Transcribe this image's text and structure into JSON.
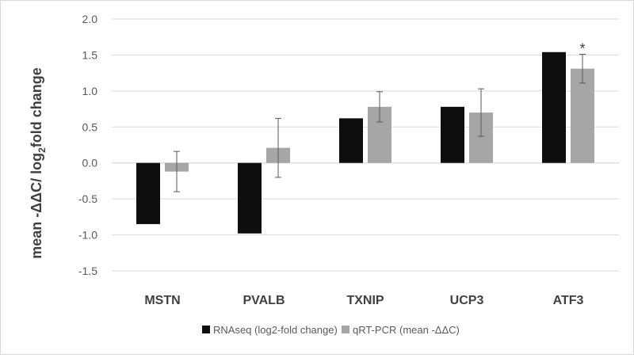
{
  "chart_data": {
    "type": "bar",
    "categories": [
      "MSTN",
      "PVALB",
      "TXNIP",
      "UCP3",
      "ATF3"
    ],
    "series": [
      {
        "name": "RNAseq (log2-fold change)",
        "values": [
          -0.85,
          -0.98,
          0.62,
          0.78,
          1.54
        ],
        "color": "#0d0d0d"
      },
      {
        "name": "qRT-PCR (mean -ΔΔC)",
        "values": [
          -0.12,
          0.21,
          0.78,
          0.7,
          1.31
        ],
        "error": [
          0.28,
          0.41,
          0.21,
          0.33,
          0.2
        ],
        "color": "#a6a6a6"
      }
    ],
    "ylabel_main": "mean -ΔΔC/ log",
    "ylabel_sub": "2",
    "ylabel_end": "fold change",
    "ylim": [
      -1.5,
      2.0
    ],
    "yticks": [
      "-1.5",
      "-1.0",
      "-0.5",
      "0.0",
      "0.5",
      "1.0",
      "1.5",
      "2.0"
    ],
    "grid": true,
    "legend_position": "bottom",
    "annotations": [
      {
        "category": "ATF3",
        "series": 1,
        "text": "*"
      }
    ]
  }
}
